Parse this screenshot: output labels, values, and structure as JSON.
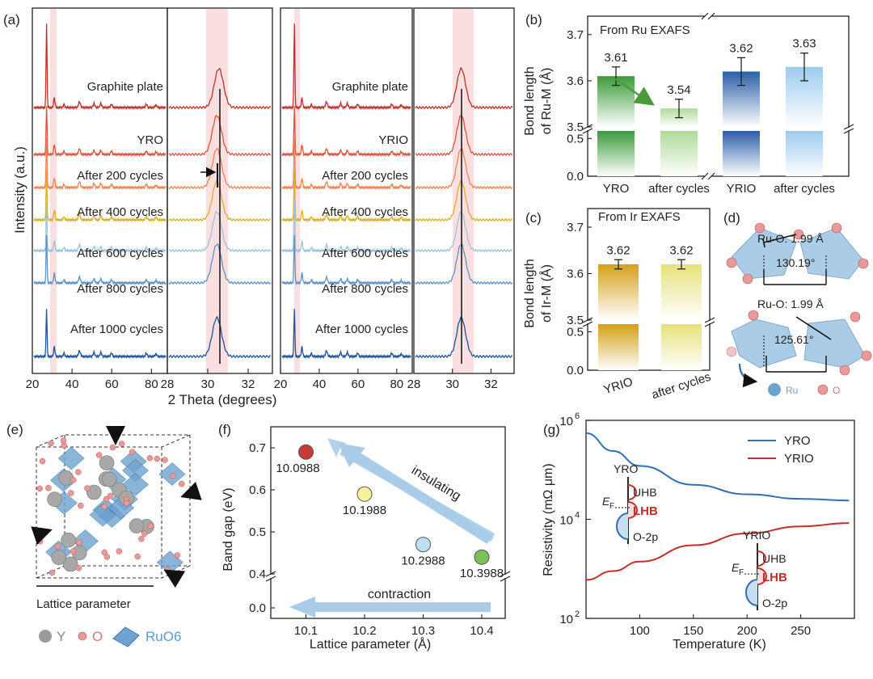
{
  "panel_labels": {
    "a": "(a)",
    "b": "(b)",
    "c": "(c)",
    "d": "(d)",
    "e": "(e)",
    "f": "(f)",
    "g": "(g)"
  },
  "chart_data": [
    {
      "id": "a",
      "type": "line",
      "title": "",
      "xlabel": "2 Theta (degrees)",
      "ylabel": "Intensity (a.u.)",
      "subplots": [
        {
          "name": "YRO wide",
          "xlim": [
            20,
            88
          ],
          "xticks": [
            20,
            40,
            60,
            80
          ]
        },
        {
          "name": "YRO zoom",
          "xlim": [
            28,
            33.2
          ],
          "xticks": [
            28,
            30,
            32
          ]
        },
        {
          "name": "YRIO wide",
          "xlim": [
            20,
            88
          ],
          "xticks": [
            20,
            40,
            60,
            80
          ]
        },
        {
          "name": "YRIO zoom",
          "xlim": [
            28,
            33.2
          ],
          "xticks": [
            28,
            30,
            32
          ]
        }
      ],
      "series": [
        {
          "name": "Graphite plate",
          "color": "#c0302a"
        },
        {
          "name": "YRO",
          "name_right": "YRIO",
          "color": "#d9543a"
        },
        {
          "name": "After 200 cycles",
          "color": "#f0834e"
        },
        {
          "name": "After 400 cycles",
          "color": "#d8b02a"
        },
        {
          "name": "After 600 cycles",
          "color": "#9cc3dd"
        },
        {
          "name": "After 800 cycles",
          "color": "#5f93c4"
        },
        {
          "name": "After 1000 cycles",
          "color": "#1f5499"
        }
      ]
    },
    {
      "id": "b",
      "type": "bar",
      "annotation": "From Ru EXAFS",
      "ylabel_line1": "Bond length",
      "ylabel_line2": "of Ru-M (Å)",
      "categories": [
        "YRO",
        "after cycles",
        "YRIO",
        "after cycles"
      ],
      "values": [
        3.61,
        3.54,
        3.62,
        3.63
      ],
      "errors": [
        0.02,
        0.02,
        0.03,
        0.03
      ],
      "value_labels": [
        "3.61",
        "3.54",
        "3.62",
        "3.63"
      ],
      "ylim_upper": [
        3.5,
        3.74
      ],
      "ylim_lower": [
        0,
        0.6
      ],
      "upper_ticks": [
        "3.5",
        "3.6",
        "3.7"
      ],
      "lower_ticks": [
        "0.0",
        "0.5"
      ],
      "colors": [
        "#3a9a3a",
        "#aedb98",
        "#2a5fa8",
        "#9ccbee"
      ]
    },
    {
      "id": "c",
      "type": "bar",
      "annotation": "From Ir EXAFS",
      "ylabel_line1": "Bond length",
      "ylabel_line2": "of Ir-M (Å)",
      "categories": [
        "YRIO",
        "after cycles"
      ],
      "values": [
        3.62,
        3.62
      ],
      "errors": [
        0.01,
        0.01
      ],
      "value_labels": [
        "3.62",
        "3.62"
      ],
      "ylim_upper": [
        3.5,
        3.74
      ],
      "ylim_lower": [
        0,
        0.6
      ],
      "upper_ticks": [
        "3.5",
        "3.6",
        "3.7"
      ],
      "lower_ticks": [
        "0.0",
        "0.5"
      ],
      "colors": [
        "#d4a017",
        "#e6e27a"
      ]
    },
    {
      "id": "f",
      "type": "scatter",
      "xlabel": "Lattice parameter (Å)",
      "ylabel": "Band gap (eV)",
      "xlim": [
        10.04,
        10.44
      ],
      "xticks": [
        "10.1",
        "10.2",
        "10.3",
        "10.4"
      ],
      "yticks_upper": [
        "0.4",
        "0.5",
        "0.6",
        "0.7"
      ],
      "yticks_lower": [
        "0.0"
      ],
      "x": [
        10.1,
        10.2,
        10.3,
        10.4
      ],
      "y": [
        0.69,
        0.59,
        0.47,
        0.44
      ],
      "point_labels": [
        "10.0988",
        "10.1988",
        "10.2988",
        "10.3988"
      ],
      "colors": [
        "#c83a3a",
        "#f7f29a",
        "#bfe0f2",
        "#7cc05a"
      ],
      "arrow_labels": [
        "insulating",
        "contraction"
      ]
    },
    {
      "id": "g",
      "type": "line",
      "xlabel": "Temperature (K)",
      "ylabel": "Resistivity (mΩ μm)",
      "xlim": [
        50,
        300
      ],
      "xticks": [
        "100",
        "150",
        "200",
        "250"
      ],
      "ylog": true,
      "ylim": [
        100,
        1000000
      ],
      "yticks": [
        {
          "base": "10",
          "exp": "2"
        },
        {
          "base": "10",
          "exp": "4"
        },
        {
          "base": "10",
          "exp": "6"
        }
      ],
      "series": [
        {
          "name": "YRO",
          "color": "#2e6fb5",
          "x": [
            50,
            75,
            100,
            150,
            200,
            250,
            295
          ],
          "y": [
            550000,
            240000,
            120000,
            50000,
            32000,
            26000,
            24000
          ]
        },
        {
          "name": "YRIO",
          "color": "#c0302a",
          "x": [
            50,
            75,
            100,
            150,
            200,
            250,
            295
          ],
          "y": [
            600,
            900,
            1400,
            3000,
            5200,
            7200,
            8400
          ]
        }
      ],
      "insets": [
        {
          "title": "YRO",
          "ef": "E",
          "ef_sub": "F",
          "bands": [
            "UHB",
            "LHB",
            "O-2p"
          ]
        },
        {
          "title": "YRIO",
          "ef": "E",
          "ef_sub": "F",
          "bands": [
            "UHB",
            "LHB",
            "O-2p"
          ]
        }
      ]
    }
  ],
  "panel_d": {
    "top_bond": "Ru-O: 1.99 Å",
    "top_angle": "130.19°",
    "bottom_bond": "Ru-O: 1.99 Å",
    "bottom_angle": "125.61°",
    "legend": [
      "Ru",
      "O"
    ]
  },
  "panel_e": {
    "caption": "Lattice parameter",
    "legend": [
      "Y",
      "O",
      "RuO6"
    ]
  }
}
